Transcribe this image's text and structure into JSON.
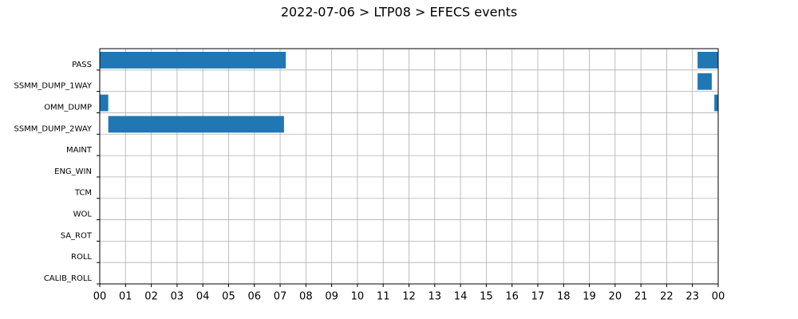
{
  "chart_data": {
    "type": "gantt",
    "title": "2022-07-06 > LTP08 > EFECS events",
    "categories": [
      "PASS",
      "SSMM_DUMP_1WAY",
      "OMM_DUMP",
      "SSMM_DUMP_2WAY",
      "MAINT",
      "ENG_WIN",
      "TCM",
      "WOL",
      "SA_ROT",
      "ROLL",
      "CALIB_ROLL"
    ],
    "color": "#1f77b4",
    "bars": [
      {
        "category": "PASS",
        "start": 0,
        "end": 7.22
      },
      {
        "category": "PASS",
        "start": 23.2,
        "end": 24
      },
      {
        "category": "SSMM_DUMP_1WAY",
        "start": 23.2,
        "end": 23.75
      },
      {
        "category": "OMM_DUMP",
        "start": 0,
        "end": 0.33
      },
      {
        "category": "OMM_DUMP",
        "start": 23.85,
        "end": 24
      },
      {
        "category": "SSMM_DUMP_2WAY",
        "start": 0.33,
        "end": 7.15
      }
    ],
    "xlim": [
      0,
      24
    ],
    "xticks": [
      {
        "value": 0,
        "label": "00"
      },
      {
        "value": 1,
        "label": "01"
      },
      {
        "value": 2,
        "label": "02"
      },
      {
        "value": 3,
        "label": "03"
      },
      {
        "value": 4,
        "label": "04"
      },
      {
        "value": 5,
        "label": "05"
      },
      {
        "value": 6,
        "label": "06"
      },
      {
        "value": 7,
        "label": "07"
      },
      {
        "value": 8,
        "label": "08"
      },
      {
        "value": 9,
        "label": "09"
      },
      {
        "value": 10,
        "label": "10"
      },
      {
        "value": 11,
        "label": "11"
      },
      {
        "value": 12,
        "label": "12"
      },
      {
        "value": 13,
        "label": "13"
      },
      {
        "value": 14,
        "label": "14"
      },
      {
        "value": 15,
        "label": "15"
      },
      {
        "value": 16,
        "label": "16"
      },
      {
        "value": 17,
        "label": "17"
      },
      {
        "value": 18,
        "label": "18"
      },
      {
        "value": 19,
        "label": "19"
      },
      {
        "value": 20,
        "label": "20"
      },
      {
        "value": 21,
        "label": "21"
      },
      {
        "value": 22,
        "label": "22"
      },
      {
        "value": 23,
        "label": "23"
      },
      {
        "value": 24,
        "label": "00"
      }
    ],
    "grid": true
  }
}
